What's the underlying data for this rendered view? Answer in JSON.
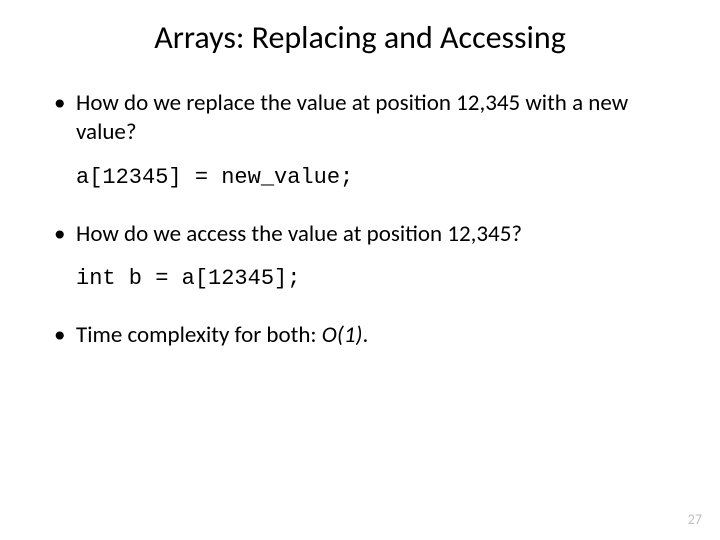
{
  "title": {
    "text": "Arrays: Replacing and Accessing",
    "fontsize": 32
  },
  "body_fontsize": 23,
  "code_fontsize": 22,
  "pagenum_fontsize": 14,
  "colors": {
    "text": "#000000",
    "background": "#ffffff",
    "pagenum": "#bfbfbf"
  },
  "bullets": [
    {
      "text": "How do we replace the value at position 12,345 with a new value?"
    },
    {
      "text": "How do we access the value at position 12,345?"
    },
    {
      "prefix": "Time complexity for both: ",
      "emph": "O(1)",
      "suffix": "."
    }
  ],
  "code": [
    "a[12345] = new_value;",
    "int b = a[12345];"
  ],
  "page_number": "27"
}
